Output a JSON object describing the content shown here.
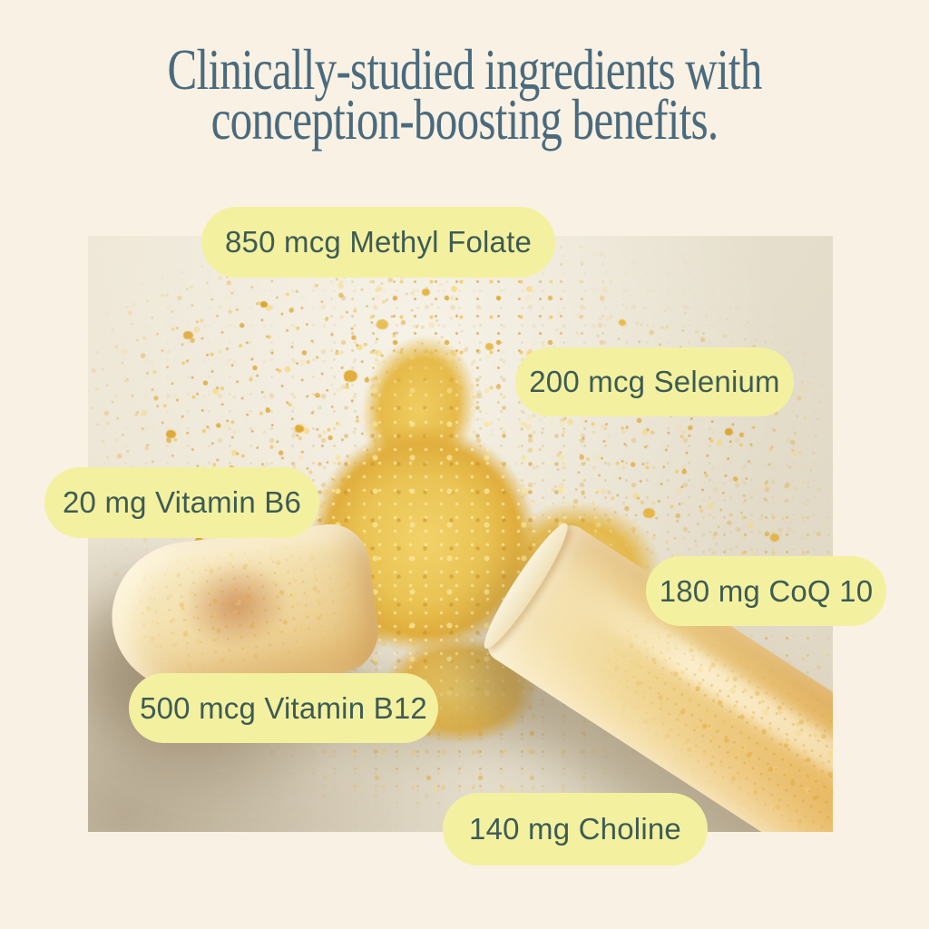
{
  "headline": {
    "line1": "Clinically-studied ingredients with",
    "line2": "conception-boosting benefits.",
    "full_text": "Clinically-studied ingredients with conception-boosting benefits."
  },
  "badges": [
    {
      "id": "methyl-folate",
      "label": "850 mcg Methyl Folate"
    },
    {
      "id": "selenium",
      "label": "200 mcg Selenium"
    },
    {
      "id": "vitamin-b6",
      "label": "20 mg Vitamin B6"
    },
    {
      "id": "coq10",
      "label": "180 mg CoQ 10"
    },
    {
      "id": "vitamin-b12",
      "label": "500 mcg Vitamin B12"
    },
    {
      "id": "choline",
      "label": "140 mg Choline"
    }
  ],
  "photo": {
    "alt": "Opened two-piece supplement capsule spilling golden-yellow powder on a beige surface"
  },
  "colors": {
    "page_background": "#f9f1e3",
    "headline_text": "#4a6a7d",
    "badge_background": "#f3f1a0",
    "badge_text": "#3e5b54",
    "powder_yellow": "#e5b647",
    "capsule_shell": "#f2dfae",
    "photo_background": "#e8e1d0"
  }
}
